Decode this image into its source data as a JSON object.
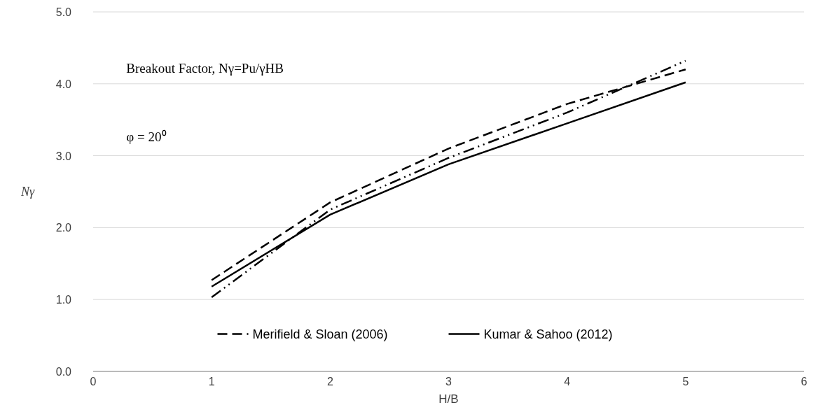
{
  "chart_data": {
    "type": "line",
    "xlabel": "H/B",
    "ylabel": "Nγ",
    "x": [
      1,
      2,
      3,
      4,
      5
    ],
    "series": [
      {
        "name": "Merifield & Sloan (2006)",
        "color": "#000000",
        "line_style": "dashed",
        "values": [
          1.27,
          2.35,
          3.1,
          3.72,
          4.2
        ]
      },
      {
        "color": "#000000",
        "line_style": "dashdot",
        "values": [
          1.03,
          2.25,
          2.97,
          3.6,
          4.32
        ]
      },
      {
        "name": "Kumar & Sahoo (2012)",
        "color": "#000000",
        "line_style": "solid",
        "values": [
          1.18,
          2.18,
          2.88,
          3.45,
          4.02
        ]
      }
    ],
    "xlim": [
      0,
      6
    ],
    "xticks": [
      0,
      1,
      2,
      3,
      4,
      5,
      6
    ],
    "ylim": [
      0,
      5
    ],
    "yticks": [
      {
        "value": 0,
        "label": "0.0"
      },
      {
        "value": 1,
        "label": "1.0"
      },
      {
        "value": 2,
        "label": "2.0"
      },
      {
        "value": 3,
        "label": "3.0"
      },
      {
        "value": 4,
        "label": "4.0"
      },
      {
        "value": 5,
        "label": "5.0"
      }
    ],
    "grid": "y",
    "legend": "bottom",
    "marker": "none",
    "annotations": [
      "Breakout Factor, Nγ=Pu/γHB",
      "φ = 20⁰"
    ]
  }
}
